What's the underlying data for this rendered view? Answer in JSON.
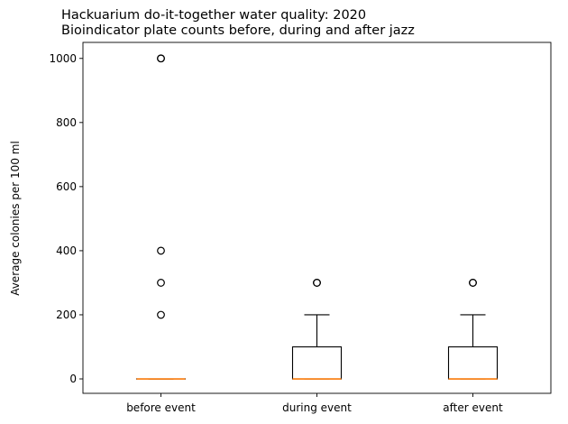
{
  "chart_data": {
    "type": "box",
    "title": "Hackuarium do-it-together water quality: 2020",
    "subtitle": "Bioindicator plate counts before, during and after jazz",
    "xlabel": "",
    "ylabel": "Average colonies per 100 ml",
    "categories": [
      "before event",
      "during event",
      "after event"
    ],
    "ylim": [
      -45,
      1050
    ],
    "yticks": [
      0,
      200,
      400,
      600,
      800,
      1000
    ],
    "ytick_labels": [
      "0",
      "200",
      "400",
      "600",
      "800",
      "1000"
    ],
    "grid": false,
    "colors": {
      "box": "#000000",
      "median": "#ff7f0e",
      "outlier": "#000000",
      "axes": "#000000"
    },
    "boxes": [
      {
        "category": "before event",
        "q1": 0,
        "median": 0,
        "q3": 0,
        "whisker_low": 0,
        "whisker_high": 0,
        "outliers": [
          200,
          300,
          400,
          1000,
          1000
        ]
      },
      {
        "category": "during event",
        "q1": 0,
        "median": 0,
        "q3": 100,
        "whisker_low": 0,
        "whisker_high": 200,
        "outliers": [
          300,
          300
        ]
      },
      {
        "category": "after event",
        "q1": 0,
        "median": 0,
        "q3": 100,
        "whisker_low": 0,
        "whisker_high": 200,
        "outliers": [
          300,
          300
        ]
      }
    ]
  }
}
